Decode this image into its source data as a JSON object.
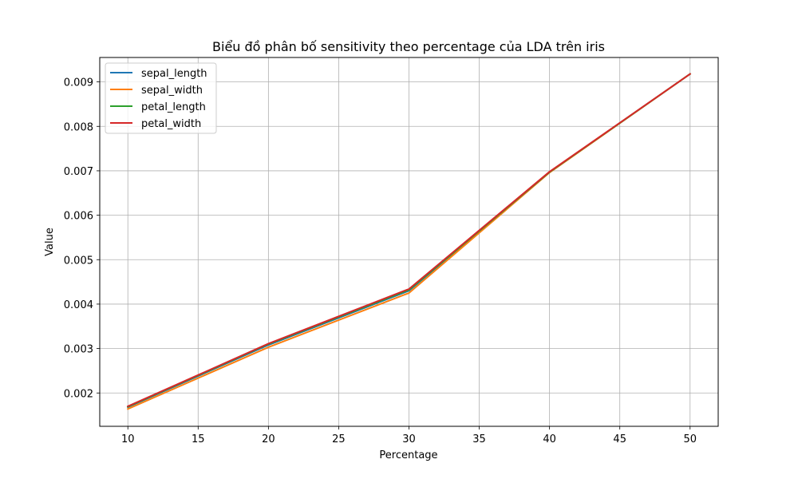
{
  "chart_data": {
    "type": "line",
    "title": "Biểu đồ phân bố sensitivity theo percentage của LDA trên iris",
    "xlabel": "Percentage",
    "ylabel": "Value",
    "x": [
      10,
      20,
      30,
      40,
      50
    ],
    "xlim": [
      8,
      52
    ],
    "ylim": [
      0.00125,
      0.00955
    ],
    "xticks": [
      10,
      15,
      20,
      25,
      30,
      35,
      40,
      45,
      50
    ],
    "yticks": [
      0.002,
      0.003,
      0.004,
      0.005,
      0.006,
      0.007,
      0.008,
      0.009
    ],
    "ytick_labels": [
      "0.002",
      "0.003",
      "0.004",
      "0.005",
      "0.006",
      "0.007",
      "0.008",
      "0.009"
    ],
    "grid": true,
    "legend_position": "top-left",
    "series": [
      {
        "name": "sepal_length",
        "color": "#1f77b4",
        "values": [
          0.00168,
          0.00308,
          0.0043,
          0.00697,
          0.00918
        ]
      },
      {
        "name": "sepal_width",
        "color": "#ff7f0e",
        "values": [
          0.00164,
          0.00303,
          0.00425,
          0.00696,
          0.00918
        ]
      },
      {
        "name": "petal_length",
        "color": "#2ca02c",
        "values": [
          0.00169,
          0.0031,
          0.00432,
          0.00697,
          0.00918
        ]
      },
      {
        "name": "petal_width",
        "color": "#d62728",
        "values": [
          0.0017,
          0.00311,
          0.00434,
          0.00698,
          0.00918
        ]
      }
    ]
  }
}
